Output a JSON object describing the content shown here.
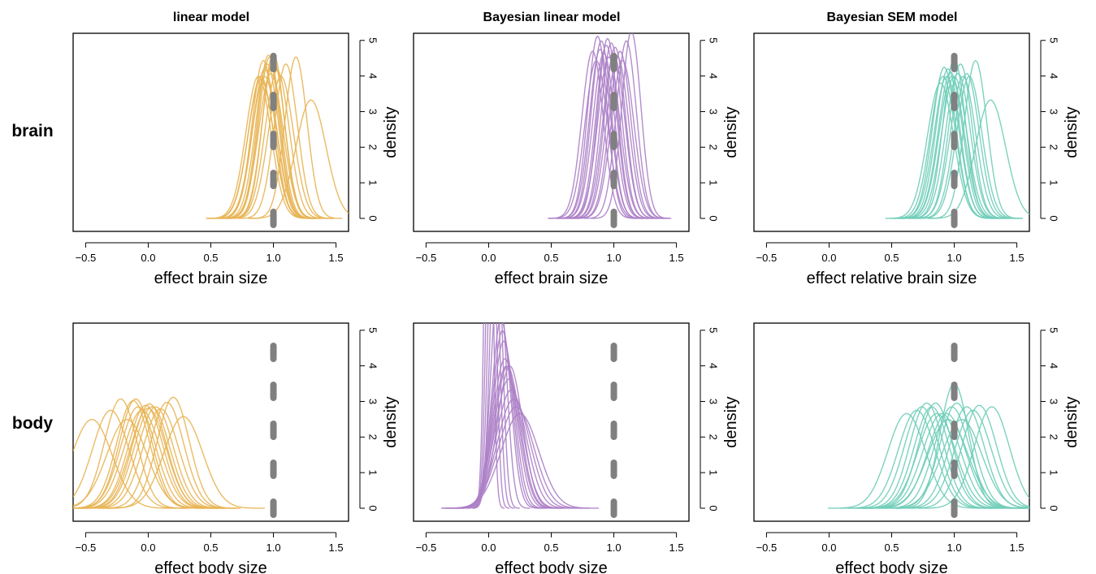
{
  "colors": {
    "linear": "#E8B453",
    "bayes_linear": "#AC80C6",
    "sem": "#6FCDB8",
    "truth": "#808080",
    "axis": "#000000"
  },
  "col_titles": [
    "linear model",
    "Bayesian linear model",
    "Bayesian SEM model"
  ],
  "row_labels": [
    "brain",
    "body"
  ],
  "x_ticks": [
    "-0.5",
    "0.0",
    "0.5",
    "1.0",
    "1.5"
  ],
  "x_tick_values": [
    -0.5,
    0.0,
    0.5,
    1.0,
    1.5
  ],
  "y_ticks": [
    "0",
    "1",
    "2",
    "3",
    "4",
    "5"
  ],
  "y_tick_values": [
    0,
    1,
    2,
    3,
    4,
    5
  ],
  "chart_data": [
    {
      "type": "line",
      "panel": "brain / linear model",
      "title": "linear model",
      "row": "brain",
      "color": "linear",
      "xlabel": "effect brain size",
      "ylabel": "density",
      "xlim": [
        -0.6,
        1.6
      ],
      "ylim": [
        0,
        5.2
      ],
      "reference_x": 1.0,
      "grid": false,
      "series": [
        {
          "mean": 0.92,
          "sd": 0.09
        },
        {
          "mean": 0.95,
          "sd": 0.092
        },
        {
          "mean": 0.9,
          "sd": 0.1
        },
        {
          "mean": 0.97,
          "sd": 0.088
        },
        {
          "mean": 0.93,
          "sd": 0.095
        },
        {
          "mean": 1.0,
          "sd": 0.09
        },
        {
          "mean": 0.88,
          "sd": 0.1
        },
        {
          "mean": 1.03,
          "sd": 0.096
        },
        {
          "mean": 0.96,
          "sd": 0.087
        },
        {
          "mean": 1.0,
          "sd": 0.086
        },
        {
          "mean": 1.1,
          "sd": 0.092
        },
        {
          "mean": 1.18,
          "sd": 0.088
        },
        {
          "mean": 1.3,
          "sd": 0.12
        },
        {
          "mean": 0.9,
          "sd": 0.102
        },
        {
          "mean": 0.93,
          "sd": 0.1
        },
        {
          "mean": 1.06,
          "sd": 0.1
        },
        {
          "mean": 0.98,
          "sd": 0.098
        }
      ]
    },
    {
      "type": "line",
      "panel": "brain / Bayesian linear model",
      "title": "Bayesian linear model",
      "row": "brain",
      "color": "bayes_linear",
      "xlabel": "effect brain size",
      "ylabel": "density",
      "xlim": [
        -0.6,
        1.6
      ],
      "ylim": [
        0,
        5.2
      ],
      "reference_x": 1.0,
      "grid": false,
      "series": [
        {
          "mean": 0.87,
          "sd": 0.078
        },
        {
          "mean": 0.9,
          "sd": 0.08
        },
        {
          "mean": 0.94,
          "sd": 0.082
        },
        {
          "mean": 0.98,
          "sd": 0.081
        },
        {
          "mean": 1.01,
          "sd": 0.083
        },
        {
          "mean": 1.05,
          "sd": 0.085
        },
        {
          "mean": 1.1,
          "sd": 0.08
        },
        {
          "mean": 1.14,
          "sd": 0.076
        },
        {
          "mean": 0.83,
          "sd": 0.085
        },
        {
          "mean": 0.86,
          "sd": 0.09
        },
        {
          "mean": 0.96,
          "sd": 0.088
        },
        {
          "mean": 0.92,
          "sd": 0.086
        },
        {
          "mean": 1.0,
          "sd": 0.087
        },
        {
          "mean": 0.89,
          "sd": 0.084
        },
        {
          "mean": 1.07,
          "sd": 0.09
        },
        {
          "mean": 0.95,
          "sd": 0.079
        },
        {
          "mean": 1.03,
          "sd": 0.088
        }
      ]
    },
    {
      "type": "line",
      "panel": "brain / Bayesian SEM model",
      "title": "Bayesian SEM model",
      "row": "brain",
      "color": "sem",
      "xlabel": "effect relative brain size",
      "ylabel": "density",
      "xlim": [
        -0.6,
        1.6
      ],
      "ylim": [
        0,
        5.2
      ],
      "reference_x": 1.0,
      "grid": false,
      "series": [
        {
          "mean": 0.91,
          "sd": 0.1
        },
        {
          "mean": 0.94,
          "sd": 0.1
        },
        {
          "mean": 0.97,
          "sd": 0.097
        },
        {
          "mean": 1.0,
          "sd": 0.089
        },
        {
          "mean": 1.03,
          "sd": 0.098
        },
        {
          "mean": 1.07,
          "sd": 0.1
        },
        {
          "mean": 1.12,
          "sd": 0.1
        },
        {
          "mean": 1.17,
          "sd": 0.09
        },
        {
          "mean": 1.29,
          "sd": 0.12
        },
        {
          "mean": 0.89,
          "sd": 0.105
        },
        {
          "mean": 0.95,
          "sd": 0.095
        },
        {
          "mean": 1.0,
          "sd": 0.1
        },
        {
          "mean": 1.05,
          "sd": 0.092
        },
        {
          "mean": 0.92,
          "sd": 0.094
        },
        {
          "mean": 0.98,
          "sd": 0.1
        },
        {
          "mean": 1.1,
          "sd": 0.098
        }
      ]
    },
    {
      "type": "line",
      "panel": "body / linear model",
      "title": "",
      "row": "body",
      "color": "linear",
      "xlabel": "effect body size",
      "ylabel": "density",
      "xlim": [
        -0.6,
        1.6
      ],
      "ylim": [
        0,
        5.2
      ],
      "reference_x": 1.0,
      "grid": false,
      "series": [
        {
          "mean": -0.45,
          "sd": 0.16
        },
        {
          "mean": -0.3,
          "sd": 0.145
        },
        {
          "mean": -0.22,
          "sd": 0.13
        },
        {
          "mean": -0.17,
          "sd": 0.16
        },
        {
          "mean": -0.12,
          "sd": 0.132
        },
        {
          "mean": -0.08,
          "sd": 0.14
        },
        {
          "mean": -0.05,
          "sd": 0.145
        },
        {
          "mean": -0.02,
          "sd": 0.138
        },
        {
          "mean": 0.0,
          "sd": 0.142
        },
        {
          "mean": 0.03,
          "sd": 0.14
        },
        {
          "mean": 0.06,
          "sd": 0.14
        },
        {
          "mean": 0.1,
          "sd": 0.143
        },
        {
          "mean": 0.15,
          "sd": 0.134
        },
        {
          "mean": 0.2,
          "sd": 0.128
        },
        {
          "mean": 0.28,
          "sd": 0.155
        },
        {
          "mean": -0.1,
          "sd": 0.13
        },
        {
          "mean": 0.01,
          "sd": 0.136
        }
      ]
    },
    {
      "type": "line",
      "panel": "body / Bayesian linear model",
      "title": "",
      "row": "body",
      "color": "bayes_linear",
      "xlabel": "effect body size",
      "ylabel": "density",
      "xlim": [
        -0.6,
        1.6
      ],
      "ylim": [
        0,
        5.2
      ],
      "reference_x": 1.0,
      "grid": false,
      "series": [
        {
          "mean": 0.0,
          "sd": 0.03
        },
        {
          "mean": 0.02,
          "sd": 0.035
        },
        {
          "mean": 0.04,
          "sd": 0.04
        },
        {
          "mean": 0.06,
          "sd": 0.045
        },
        {
          "mean": 0.08,
          "sd": 0.06
        },
        {
          "mean": 0.1,
          "sd": 0.075
        },
        {
          "mean": 0.11,
          "sd": 0.08
        },
        {
          "mean": 0.12,
          "sd": 0.085
        },
        {
          "mean": 0.13,
          "sd": 0.095
        },
        {
          "mean": 0.14,
          "sd": 0.1
        },
        {
          "mean": 0.15,
          "sd": 0.1
        },
        {
          "mean": 0.16,
          "sd": 0.11
        },
        {
          "mean": 0.17,
          "sd": 0.1
        },
        {
          "mean": 0.18,
          "sd": 0.12
        },
        {
          "mean": 0.2,
          "sd": 0.13
        },
        {
          "mean": 0.25,
          "sd": 0.15
        },
        {
          "mean": 0.22,
          "sd": 0.14
        }
      ]
    },
    {
      "type": "line",
      "panel": "body / Bayesian SEM model",
      "title": "",
      "row": "body",
      "color": "sem",
      "xlabel": "effect body size",
      "ylabel": "density",
      "xlim": [
        -0.6,
        1.6
      ],
      "ylim": [
        0,
        5.2
      ],
      "reference_x": 1.0,
      "grid": false,
      "series": [
        {
          "mean": 0.62,
          "sd": 0.15
        },
        {
          "mean": 0.7,
          "sd": 0.145
        },
        {
          "mean": 0.74,
          "sd": 0.14
        },
        {
          "mean": 0.78,
          "sd": 0.135
        },
        {
          "mean": 0.82,
          "sd": 0.14
        },
        {
          "mean": 0.86,
          "sd": 0.15
        },
        {
          "mean": 0.9,
          "sd": 0.15
        },
        {
          "mean": 0.94,
          "sd": 0.15
        },
        {
          "mean": 0.98,
          "sd": 0.14
        },
        {
          "mean": 1.0,
          "sd": 0.114
        },
        {
          "mean": 1.02,
          "sd": 0.135
        },
        {
          "mean": 1.06,
          "sd": 0.16
        },
        {
          "mean": 1.1,
          "sd": 0.14
        },
        {
          "mean": 1.15,
          "sd": 0.145
        },
        {
          "mean": 1.2,
          "sd": 0.138
        },
        {
          "mean": 1.3,
          "sd": 0.14
        },
        {
          "mean": 0.85,
          "sd": 0.135
        },
        {
          "mean": 0.95,
          "sd": 0.16
        }
      ]
    }
  ]
}
